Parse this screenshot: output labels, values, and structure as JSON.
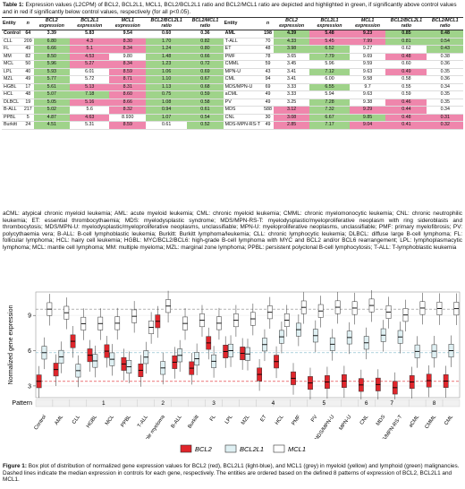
{
  "table_caption": {
    "label": "Table 1:",
    "text": " Expression values (L2CPM) of BCL2, BCL2L1, MCL1, BCL2/BCL2L1 ratio and BCL2/MCL1 ratio are depicted and highlighted in green, if significantly above control values and in red if significantly below control values, respectively (for all p<0.05)."
  },
  "table": {
    "headers": [
      "Entity",
      "n",
      "BCL2 expression",
      "BCL2L1 expression",
      "MCL1 expression",
      "BCL2/BCL2L1 ratio",
      "BCL2/MCL1 ratio"
    ],
    "left_rows": [
      {
        "cells": [
          "Control",
          "64",
          "3.39",
          "5.83",
          "9.54",
          "0.60",
          "0.36"
        ],
        "hl": [
          "",
          "",
          "",
          "",
          "",
          "",
          ""
        ]
      },
      {
        "cells": [
          "CLL",
          "209",
          "6.80",
          "4.3",
          "8.30",
          "1.70",
          "0.82"
        ],
        "hl": [
          "",
          "",
          "g",
          "p",
          "p",
          "g",
          "g"
        ]
      },
      {
        "cells": [
          "FL",
          "49",
          "6.66",
          "5.1",
          "8.34",
          "1.24",
          "0.80"
        ],
        "hl": [
          "",
          "",
          "g",
          "p",
          "p",
          "g",
          "g"
        ]
      },
      {
        "cells": [
          "MM",
          "82",
          "8.50",
          "4.53",
          "9.80",
          "1.48",
          "0.66"
        ],
        "hl": [
          "",
          "",
          "g",
          "p",
          "",
          "g",
          "g"
        ]
      },
      {
        "cells": [
          "MCL",
          "50",
          "5.96",
          "5.27",
          "8.34",
          "1.23",
          "0.72"
        ],
        "hl": [
          "",
          "",
          "g",
          "p",
          "p",
          "g",
          "g"
        ]
      },
      {
        "cells": [
          "LPL",
          "40",
          "5.93",
          "6.01",
          "8.59",
          "1.06",
          "0.69"
        ],
        "hl": [
          "",
          "",
          "g",
          "",
          "p",
          "g",
          "g"
        ]
      },
      {
        "cells": [
          "MZL",
          "49",
          "5.77",
          "5.72",
          "8.71",
          "1.10",
          "0.67"
        ],
        "hl": [
          "",
          "",
          "g",
          "",
          "p",
          "g",
          "g"
        ]
      },
      {
        "cells": [
          "HGBL",
          "17",
          "5.61",
          "5.13",
          "8.31",
          "1.13",
          "0.68"
        ],
        "hl": [
          "",
          "",
          "g",
          "p",
          "p",
          "g",
          "g"
        ]
      },
      {
        "cells": [
          "HCL",
          "48",
          "5.07",
          "7.18",
          "8.60",
          "0.75",
          "0.59"
        ],
        "hl": [
          "",
          "",
          "g",
          "g",
          "p",
          "g",
          "g"
        ]
      },
      {
        "cells": [
          "DLBCL",
          "19",
          "5.05",
          "5.16",
          "8.66",
          "1.08",
          "0.58"
        ],
        "hl": [
          "",
          "",
          "g",
          "p",
          "p",
          "g",
          "g"
        ]
      },
      {
        "cells": [
          "B-ALL",
          "217",
          "5.02",
          "5.6",
          "8.32",
          "0.94",
          "0.61"
        ],
        "hl": [
          "",
          "",
          "g",
          "",
          "p",
          "g",
          "g"
        ]
      },
      {
        "cells": [
          "PPBL",
          "5",
          "4.87",
          "4.63",
          "8.930",
          "1.07",
          "0.54"
        ],
        "hl": [
          "",
          "",
          "g",
          "p",
          "",
          "g",
          "g"
        ]
      },
      {
        "cells": [
          "Burkitt",
          "24",
          "4.51",
          "5.31",
          "8.59",
          "0.61",
          "0.52"
        ],
        "hl": [
          "",
          "",
          "g",
          "",
          "p",
          "",
          "g"
        ]
      }
    ],
    "right_rows": [
      {
        "cells": [
          "AML",
          "198",
          "4.39",
          "5.48",
          "9.23",
          "0.85",
          "0.48"
        ],
        "hl": [
          "",
          "",
          "g",
          "p",
          "p",
          "g",
          "g"
        ]
      },
      {
        "cells": [
          "T-ALL",
          "70",
          "4.33",
          "5.45",
          "7.99",
          "0.81",
          "0.54"
        ],
        "hl": [
          "",
          "",
          "g",
          "p",
          "p",
          "g",
          "g"
        ]
      },
      {
        "cells": [
          "ET",
          "48",
          "3.98",
          "6.52",
          "9.27",
          "0.62",
          "0.43"
        ],
        "hl": [
          "",
          "",
          "g",
          "g",
          "",
          "",
          "g"
        ]
      },
      {
        "cells": [
          "PMF",
          "78",
          "3.65",
          "7.79",
          "9.69",
          "0.48",
          "0.38"
        ],
        "hl": [
          "",
          "",
          "",
          "g",
          "",
          "p",
          ""
        ]
      },
      {
        "cells": [
          "CMML",
          "59",
          "3.45",
          "5.96",
          "9.59",
          "0.60",
          "0.36"
        ],
        "hl": [
          "",
          "",
          "",
          "",
          "",
          "",
          ""
        ]
      },
      {
        "cells": [
          "MPN-U",
          "43",
          "3.41",
          "7.12",
          "9.63",
          "0.49",
          "0.35"
        ],
        "hl": [
          "",
          "",
          "",
          "g",
          "",
          "p",
          ""
        ]
      },
      {
        "cells": [
          "CML",
          "94",
          "3.41",
          "6.00",
          "9.58",
          "0.58",
          "0.36"
        ],
        "hl": [
          "",
          "",
          "",
          "",
          "",
          "",
          ""
        ]
      },
      {
        "cells": [
          "MDS/MPN-U",
          "69",
          "3.33",
          "6.55",
          "9.7",
          "0.55",
          "0.34"
        ],
        "hl": [
          "",
          "",
          "",
          "g",
          "",
          "",
          ""
        ]
      },
      {
        "cells": [
          "aCML",
          "49",
          "3.33",
          "5.94",
          "9.63",
          "0.59",
          "0.35"
        ],
        "hl": [
          "",
          "",
          "",
          "",
          "",
          "",
          ""
        ]
      },
      {
        "cells": [
          "PV",
          "49",
          "3.25",
          "7.28",
          "9.38",
          "0.46",
          "0.35"
        ],
        "hl": [
          "",
          "",
          "",
          "g",
          "",
          "p",
          ""
        ]
      },
      {
        "cells": [
          "MDS",
          "588",
          "3.12",
          "7.32",
          "9.29",
          "0.44",
          "0.34"
        ],
        "hl": [
          "",
          "",
          "p",
          "g",
          "p",
          "p",
          ""
        ]
      },
      {
        "cells": [
          "CNL",
          "30",
          "3.08",
          "6.67",
          "9.85",
          "0.48",
          "0.31"
        ],
        "hl": [
          "",
          "",
          "p",
          "g",
          "g",
          "p",
          "p"
        ]
      },
      {
        "cells": [
          "MDS-MPN-RS-T",
          "49",
          "2.85",
          "7.17",
          "9.04",
          "0.41",
          "0.32"
        ],
        "hl": [
          "",
          "",
          "p",
          "g",
          "p",
          "p",
          "p"
        ]
      }
    ]
  },
  "abbreviations": "aCML: atypical chronic myeloid leukemia; AML: acute myeloid leukemia; CML: chronic myeloid leukemia; CMML: chronic myelomonocytic leukemia; CNL: chronic neutrophilic leukemia; ET: essential thrombocythaemia; MDS: myelodysplastic syndrome; MDS/MPN-RS-T: myelodysplastic/myeloproliferative neoplasm with ring sideroblasts and thrombocytosis; MDS/MPN-U: myelodysplastic/myeloproliferative neoplasms, unclassifiable; MPN-U: myeloproliferative neoplasms, unclassifiable; PMF: primary myelofibrosis; PV: polycythaemia vera; B-ALL: B-cell lymphoblastic leukemia; Burkitt: Burkitt lymphoma/leukemia; CLL: chronic lymphocytic leukemia; DLBCL: diffuse large B-cell lymphoma; FL: follicular lymphoma; HCL: hairy cell leukemia; HGBL: MYC/BCL2/BCL6: high-grade B-cell lymphoma with MYC and BCL2 and/or BCL6 rearrangement; LPL: lymphoplasmacytic lymphoma; MCL: mantle cell lymphoma; MM: multiple myeloma; MZL: marginal zone lymphoma; PPBL: persistent polyclonal B-cell lymphocytosis; T-ALL: T-lymphoblastic leukemia",
  "chart_data": {
    "type": "box",
    "ylabel": "Normalized gene expression",
    "ylim": [
      2,
      11
    ],
    "yticks": [
      3,
      6,
      9
    ],
    "pattern_label": "Pattern",
    "categories": [
      "Control",
      "AML",
      "CLL",
      "HGBL",
      "MCL",
      "PPBL",
      "T-ALL",
      "Multiple myeloma",
      "B-ALL",
      "Burkitt",
      "FL",
      "LPL",
      "MZL",
      "ET",
      "HCL",
      "PMF",
      "PV",
      "MDS/MPN-U",
      "MPN-U",
      "CNL",
      "MDS",
      "MDS/MPN-RS-T",
      "aCML",
      "CMML",
      "CML"
    ],
    "patterns": [
      {
        "label": "",
        "from": 0,
        "to": 0
      },
      {
        "label": "1",
        "from": 1,
        "to": 6
      },
      {
        "label": "2",
        "from": 7,
        "to": 7
      },
      {
        "label": "3",
        "from": 8,
        "to": 12
      },
      {
        "label": "4",
        "from": 13,
        "to": 14
      },
      {
        "label": "5",
        "from": 15,
        "to": 18
      },
      {
        "label": "6",
        "from": 19,
        "to": 19
      },
      {
        "label": "7",
        "from": 20,
        "to": 21
      },
      {
        "label": "8",
        "from": 22,
        "to": 24
      }
    ],
    "series": [
      {
        "name": "BCL2",
        "color": "#e0252b",
        "medians": [
          3.39,
          4.39,
          6.8,
          5.61,
          5.96,
          4.87,
          4.33,
          8.5,
          5.02,
          4.51,
          6.66,
          5.93,
          5.77,
          3.98,
          5.07,
          3.65,
          3.25,
          3.33,
          3.41,
          3.08,
          3.12,
          2.85,
          3.33,
          3.45,
          3.41
        ]
      },
      {
        "name": "BCL2L1",
        "color": "#dff0f3",
        "medians": [
          5.83,
          5.48,
          4.3,
          5.13,
          5.27,
          4.63,
          5.45,
          4.53,
          5.6,
          5.31,
          5.1,
          6.01,
          5.72,
          6.52,
          7.18,
          7.79,
          7.28,
          6.55,
          7.12,
          6.67,
          7.32,
          7.17,
          5.94,
          5.96,
          6.0
        ]
      },
      {
        "name": "MCL1",
        "color": "#c8c8c8",
        "medians": [
          9.54,
          9.23,
          8.3,
          8.31,
          8.34,
          8.93,
          7.99,
          9.8,
          8.32,
          8.59,
          8.34,
          8.59,
          8.71,
          9.27,
          8.6,
          9.69,
          9.38,
          9.7,
          9.63,
          9.85,
          9.29,
          9.04,
          9.63,
          9.59,
          9.58
        ]
      }
    ]
  },
  "legend": {
    "bcl2": "BCL2",
    "bcl2l1": "BCL2L1",
    "mcl1": "MCL1"
  },
  "figure_caption": {
    "label": "Figure 1:",
    "text": " Box plot of distribution of normalized gene expression values for BCL2 (red), BCL2L1 (light-blue), and MCL1 (grey) in myeloid (yellow) and lymphoid (green) malignancies. Dashed lines indicate the median expression in controls for each gene, respectively. The entities are ordered based on the defined 8 patterns of expression of BCL2, BCL2L1 and MCL1."
  }
}
